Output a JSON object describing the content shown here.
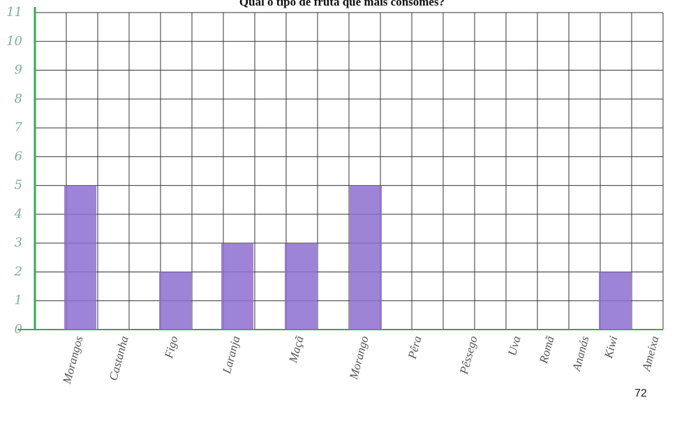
{
  "chart_data": {
    "type": "bar",
    "title": "Qual o tipo de fruta que mais consomes?",
    "categories": [
      "Morangos",
      "Castanha",
      "Figo",
      "Laranja",
      "Maçã",
      "Morango",
      "Pêra",
      "Pêssego",
      "Uva",
      "Romã",
      "Ananás",
      "Kiwi",
      "Ameixa"
    ],
    "values": [
      5,
      0,
      2,
      3,
      3,
      5,
      0,
      0,
      0,
      0,
      0,
      2,
      0
    ],
    "color": "#8d6fcf",
    "ylim": [
      0,
      11
    ],
    "yticks": [
      0,
      1,
      2,
      3,
      4,
      5,
      6,
      7,
      8,
      9,
      10,
      11
    ],
    "grid": true
  },
  "page_number": "72"
}
